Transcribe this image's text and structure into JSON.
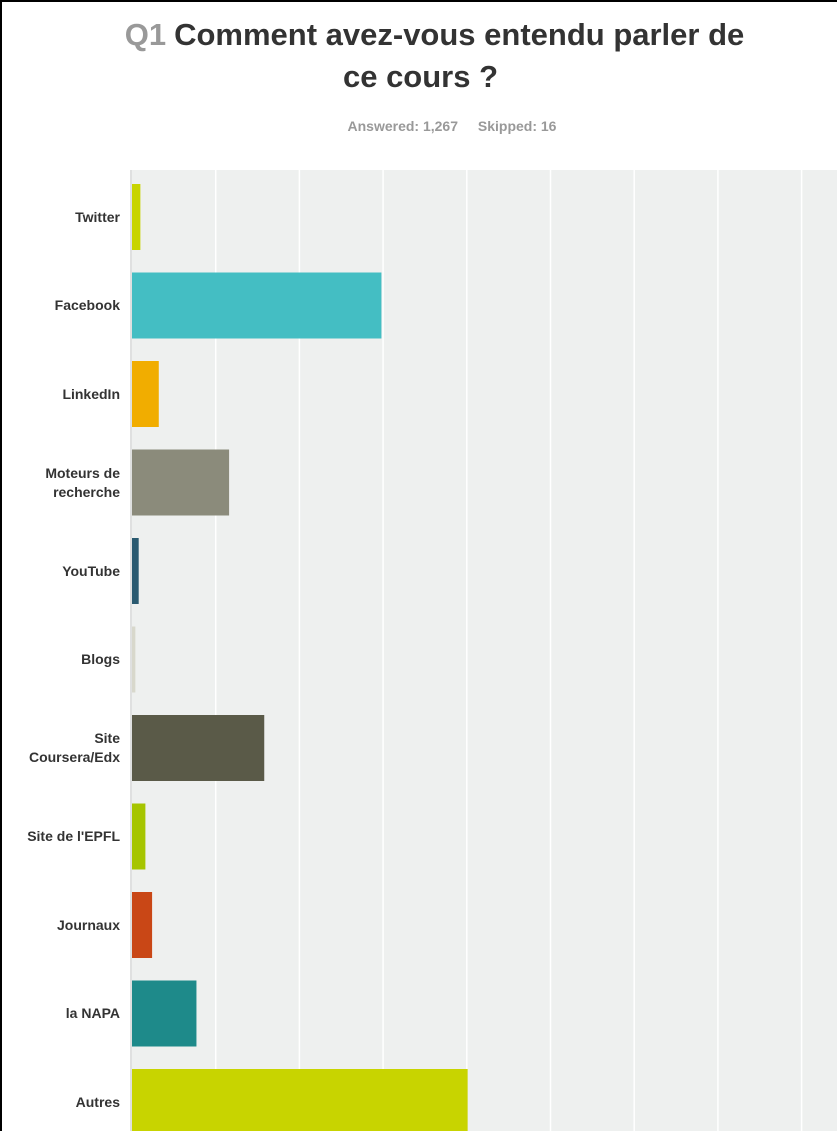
{
  "header": {
    "question_number": "Q1",
    "title_line1": "Comment avez-vous entendu parler de",
    "title_line2": "ce cours ?",
    "answered": "Answered: 1,267",
    "skipped": "Skipped: 16"
  },
  "chart_data": {
    "type": "bar",
    "orientation": "horizontal",
    "categories": [
      "Twitter",
      "Facebook",
      "LinkedIn",
      "Moteurs de\nrecherche",
      "YouTube",
      "Blogs",
      "Site\nCoursera/Edx",
      "Site de l'EPFL",
      "Journaux",
      "la NAPA",
      "Autres"
    ],
    "values": [
      1.0,
      29.8,
      3.2,
      11.6,
      0.8,
      0.4,
      15.8,
      1.6,
      2.4,
      7.7,
      40.1
    ],
    "colors": [
      "#c8d400",
      "#44bec3",
      "#f1ad00",
      "#8b8b7b",
      "#2a5a70",
      "#d8d8cc",
      "#5a5a48",
      "#a6c500",
      "#c94716",
      "#1e8a8a",
      "#c8d400"
    ],
    "xlim": [
      0,
      100
    ],
    "grid": true
  }
}
